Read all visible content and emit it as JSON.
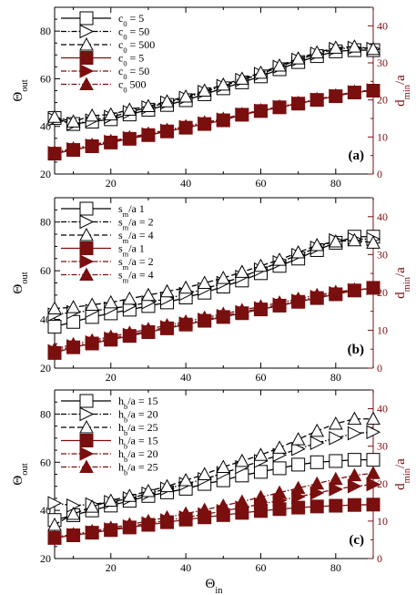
{
  "colors": {
    "left": "#000000",
    "right": "#7a0f0f"
  },
  "chart_data": [
    {
      "type": "line",
      "panel_label": "(a)",
      "xlabel": "",
      "ylabel": "Θout",
      "y2label": "dmin/a",
      "xlim": [
        5,
        90
      ],
      "ylim": [
        20,
        90
      ],
      "y2lim": [
        0,
        45
      ],
      "xticks": [
        20,
        40,
        60,
        80
      ],
      "yticks": [
        20,
        40,
        60,
        80
      ],
      "y2ticks": [
        0,
        10,
        20,
        30,
        40
      ],
      "x": [
        5,
        10,
        15,
        20,
        25,
        30,
        35,
        40,
        45,
        50,
        55,
        60,
        65,
        70,
        75,
        80,
        85,
        90
      ],
      "series": [
        {
          "name": "c0 = 5",
          "axis": "left",
          "marker": "square",
          "dash": "solid",
          "values": [
            43.5,
            41,
            42,
            43,
            45,
            47,
            49,
            51,
            53.5,
            56,
            58.5,
            61,
            64,
            67,
            69.5,
            71.5,
            72,
            72
          ]
        },
        {
          "name": "c0 = 50",
          "axis": "left",
          "marker": "triangle-right",
          "dash": "dashdot",
          "values": [
            43,
            41,
            42.5,
            44,
            46,
            48,
            50,
            52,
            54.5,
            57,
            59.5,
            62,
            65,
            68,
            70.5,
            72.5,
            73,
            72.5
          ]
        },
        {
          "name": "c0 = 500",
          "axis": "left",
          "marker": "triangle-up",
          "dash": "dash",
          "values": [
            44,
            42,
            44.5,
            45,
            47,
            48.5,
            50.5,
            52.5,
            55,
            57.5,
            60,
            62.5,
            65.5,
            68.5,
            71,
            73,
            73.5,
            72.5
          ]
        },
        {
          "name": "c0 = 5",
          "axis": "right",
          "marker": "square",
          "dash": "solid",
          "values": [
            5.5,
            6.5,
            7.5,
            8.5,
            9.5,
            10.5,
            11.5,
            12.5,
            13.5,
            14.5,
            16,
            17,
            18,
            19,
            20,
            21,
            22,
            22.5
          ]
        },
        {
          "name": "c0 = 50",
          "axis": "right",
          "marker": "triangle-right",
          "dash": "dashdot",
          "values": [
            5.7,
            6.7,
            7.7,
            8.7,
            9.7,
            10.7,
            11.7,
            12.7,
            13.7,
            14.7,
            16.1,
            17.1,
            18.1,
            19.1,
            20.1,
            21.1,
            22.1,
            22.6
          ]
        },
        {
          "name": "c0 500",
          "axis": "right",
          "marker": "triangle-up",
          "dash": "dashdot",
          "values": [
            5.9,
            6.9,
            7.9,
            8.9,
            9.9,
            10.9,
            11.9,
            12.9,
            13.9,
            14.9,
            16.2,
            17.2,
            18.2,
            19.2,
            20.2,
            21.2,
            22.2,
            22.7
          ]
        }
      ]
    },
    {
      "type": "line",
      "panel_label": "(b)",
      "xlabel": "",
      "ylabel": "Θout",
      "y2label": "dmin/a",
      "xlim": [
        5,
        90
      ],
      "ylim": [
        20,
        90
      ],
      "y2lim": [
        0,
        45
      ],
      "xticks": [
        20,
        40,
        60,
        80
      ],
      "yticks": [
        20,
        40,
        60,
        80
      ],
      "y2ticks": [
        0,
        10,
        20,
        30,
        40
      ],
      "x": [
        5,
        10,
        15,
        20,
        25,
        30,
        35,
        40,
        45,
        50,
        55,
        60,
        65,
        70,
        75,
        80,
        85,
        90
      ],
      "series": [
        {
          "name": "sm/a    1",
          "axis": "left",
          "marker": "square",
          "dash": "solid",
          "values": [
            37,
            39,
            41,
            42.5,
            44,
            45.5,
            47,
            49,
            51,
            53.5,
            56,
            59,
            62,
            65,
            68.5,
            71.5,
            74,
            74
          ]
        },
        {
          "name": "sm/a = 2",
          "axis": "left",
          "marker": "triangle-right",
          "dash": "dashdot",
          "values": [
            42,
            43,
            43.5,
            44.5,
            45.5,
            47,
            48.5,
            50.5,
            52.5,
            55,
            57.5,
            60.5,
            63.5,
            66.5,
            69.5,
            72.5,
            73,
            73
          ]
        },
        {
          "name": "sm/a = 4",
          "axis": "left",
          "marker": "triangle-up",
          "dash": "dash",
          "values": [
            44.5,
            45,
            46,
            47,
            48.5,
            50,
            51.5,
            53,
            55,
            57,
            59.5,
            62,
            64.5,
            67.5,
            70.5,
            72,
            72.5,
            71.5
          ]
        },
        {
          "name": "sm/a    1",
          "axis": "right",
          "marker": "square",
          "dash": "solid",
          "values": [
            4,
            5.5,
            6.5,
            7.5,
            8.5,
            9.5,
            10.5,
            11.5,
            12.5,
            13.5,
            14.5,
            15.5,
            16.5,
            17.5,
            18.5,
            19.5,
            20.5,
            21.2
          ]
        },
        {
          "name": "sm/a = 2",
          "axis": "right",
          "marker": "triangle-right",
          "dash": "dashdot",
          "values": [
            4.5,
            5.8,
            6.8,
            7.8,
            8.8,
            9.8,
            10.8,
            11.8,
            12.8,
            13.8,
            14.8,
            15.8,
            16.8,
            17.8,
            18.8,
            19.8,
            20.6,
            21.1
          ]
        },
        {
          "name": "sm/a = 4",
          "axis": "right",
          "marker": "triangle-up",
          "dash": "dashdot",
          "values": [
            5,
            6.3,
            7.3,
            8.3,
            9.3,
            10.3,
            11.3,
            12.3,
            13.3,
            14.3,
            15.3,
            16.3,
            17.3,
            18.3,
            19.3,
            20.1,
            20.7,
            21
          ]
        }
      ]
    },
    {
      "type": "line",
      "panel_label": "(c)",
      "xlabel": "Θin",
      "ylabel": "Θout",
      "y2label": "dmin/a",
      "xlim": [
        5,
        90
      ],
      "ylim": [
        20,
        90
      ],
      "y2lim": [
        0,
        45
      ],
      "xticks": [
        20,
        40,
        60,
        80
      ],
      "yticks": [
        20,
        40,
        60,
        80
      ],
      "y2ticks": [
        0,
        10,
        20,
        30,
        40
      ],
      "x": [
        5,
        10,
        15,
        20,
        25,
        30,
        35,
        40,
        45,
        50,
        55,
        60,
        65,
        70,
        75,
        80,
        85,
        90
      ],
      "series": [
        {
          "name": "hb/a = 15",
          "axis": "left",
          "marker": "square",
          "dash": "solid",
          "values": [
            36,
            38,
            40,
            42,
            44,
            46,
            47.5,
            49,
            51,
            52.5,
            54.5,
            56,
            57.5,
            59,
            60,
            60.5,
            61,
            61
          ]
        },
        {
          "name": "hb/a = 20",
          "axis": "left",
          "marker": "triangle-right",
          "dash": "dashdot",
          "values": [
            43,
            42,
            42.5,
            43.5,
            45,
            47,
            49,
            51,
            53,
            55.5,
            58,
            60.5,
            63,
            65.5,
            68,
            70,
            72,
            72.5
          ]
        },
        {
          "name": "hb/a = 25",
          "axis": "left",
          "marker": "triangle-up",
          "dash": "dash",
          "values": [
            34,
            38.5,
            41.5,
            44,
            46,
            48,
            50,
            52.5,
            55,
            58,
            60.5,
            63,
            66,
            69.5,
            73,
            76,
            78,
            78
          ]
        },
        {
          "name": "hb/a = 15",
          "axis": "right",
          "marker": "square",
          "dash": "solid",
          "values": [
            5.5,
            6.2,
            6.9,
            7.6,
            8.3,
            9,
            9.7,
            10.4,
            11,
            11.6,
            12.2,
            12.7,
            13.2,
            13.6,
            13.9,
            14.1,
            14.3,
            14.4
          ]
        },
        {
          "name": "hb/a = 20",
          "axis": "right",
          "marker": "triangle-right",
          "dash": "dashdot",
          "values": [
            5.6,
            6.3,
            7,
            7.8,
            8.6,
            9.4,
            10.2,
            11,
            11.8,
            12.7,
            13.6,
            14.5,
            15.5,
            16.5,
            17.5,
            18.5,
            19.3,
            19.8
          ]
        },
        {
          "name": "hb/a = 25",
          "axis": "right",
          "marker": "triangle-up",
          "dash": "dashdot",
          "values": [
            5.7,
            6.5,
            7.3,
            8.2,
            9.1,
            10,
            11,
            12,
            13,
            14.1,
            15.2,
            16.4,
            17.6,
            18.8,
            20,
            21.2,
            22.2,
            22.8
          ]
        }
      ]
    }
  ]
}
